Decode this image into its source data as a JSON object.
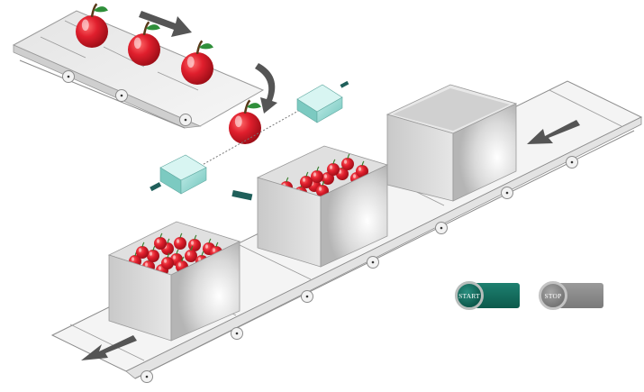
{
  "controls": {
    "start_label": "START",
    "stop_label": "STOP"
  },
  "colors": {
    "apple": "#e01f2d",
    "start_button": "#0f6b5c",
    "stop_button": "#8a8a8a",
    "sensor": "#8fd6cf",
    "arrow": "#555555"
  },
  "scene": {
    "crates": [
      {
        "name": "crate-full-left",
        "contents": "apples"
      },
      {
        "name": "crate-filling-center",
        "contents": "apples"
      },
      {
        "name": "crate-empty-right",
        "contents": "empty"
      }
    ]
  }
}
